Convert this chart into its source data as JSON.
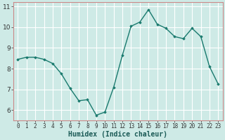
{
  "x": [
    0,
    1,
    2,
    3,
    4,
    5,
    6,
    7,
    8,
    9,
    10,
    11,
    12,
    13,
    14,
    15,
    16,
    17,
    18,
    19,
    20,
    21,
    22,
    23
  ],
  "y": [
    8.45,
    8.55,
    8.55,
    8.45,
    8.25,
    7.75,
    7.05,
    6.45,
    6.5,
    5.75,
    5.9,
    7.1,
    8.65,
    10.05,
    10.25,
    10.85,
    10.15,
    9.95,
    9.55,
    9.45,
    9.95,
    9.55,
    8.1,
    7.25
  ],
  "xlabel": "Humidex (Indice chaleur)",
  "ylim": [
    5.5,
    11.2
  ],
  "xlim": [
    -0.5,
    23.5
  ],
  "yticks": [
    6,
    7,
    8,
    9,
    10,
    11
  ],
  "xticks": [
    0,
    1,
    2,
    3,
    4,
    5,
    6,
    7,
    8,
    9,
    10,
    11,
    12,
    13,
    14,
    15,
    16,
    17,
    18,
    19,
    20,
    21,
    22,
    23
  ],
  "line_color": "#1a7a6e",
  "bg_color": "#ceeae6",
  "grid_color": "#ffffff",
  "grid_minor_color": "#ddf0ed",
  "marker": "D",
  "marker_size": 1.8,
  "line_width": 1.0,
  "xlabel_fontsize": 7,
  "xlabel_fontweight": "bold",
  "tick_fontsize": 5.5,
  "ytick_fontsize": 6.5
}
